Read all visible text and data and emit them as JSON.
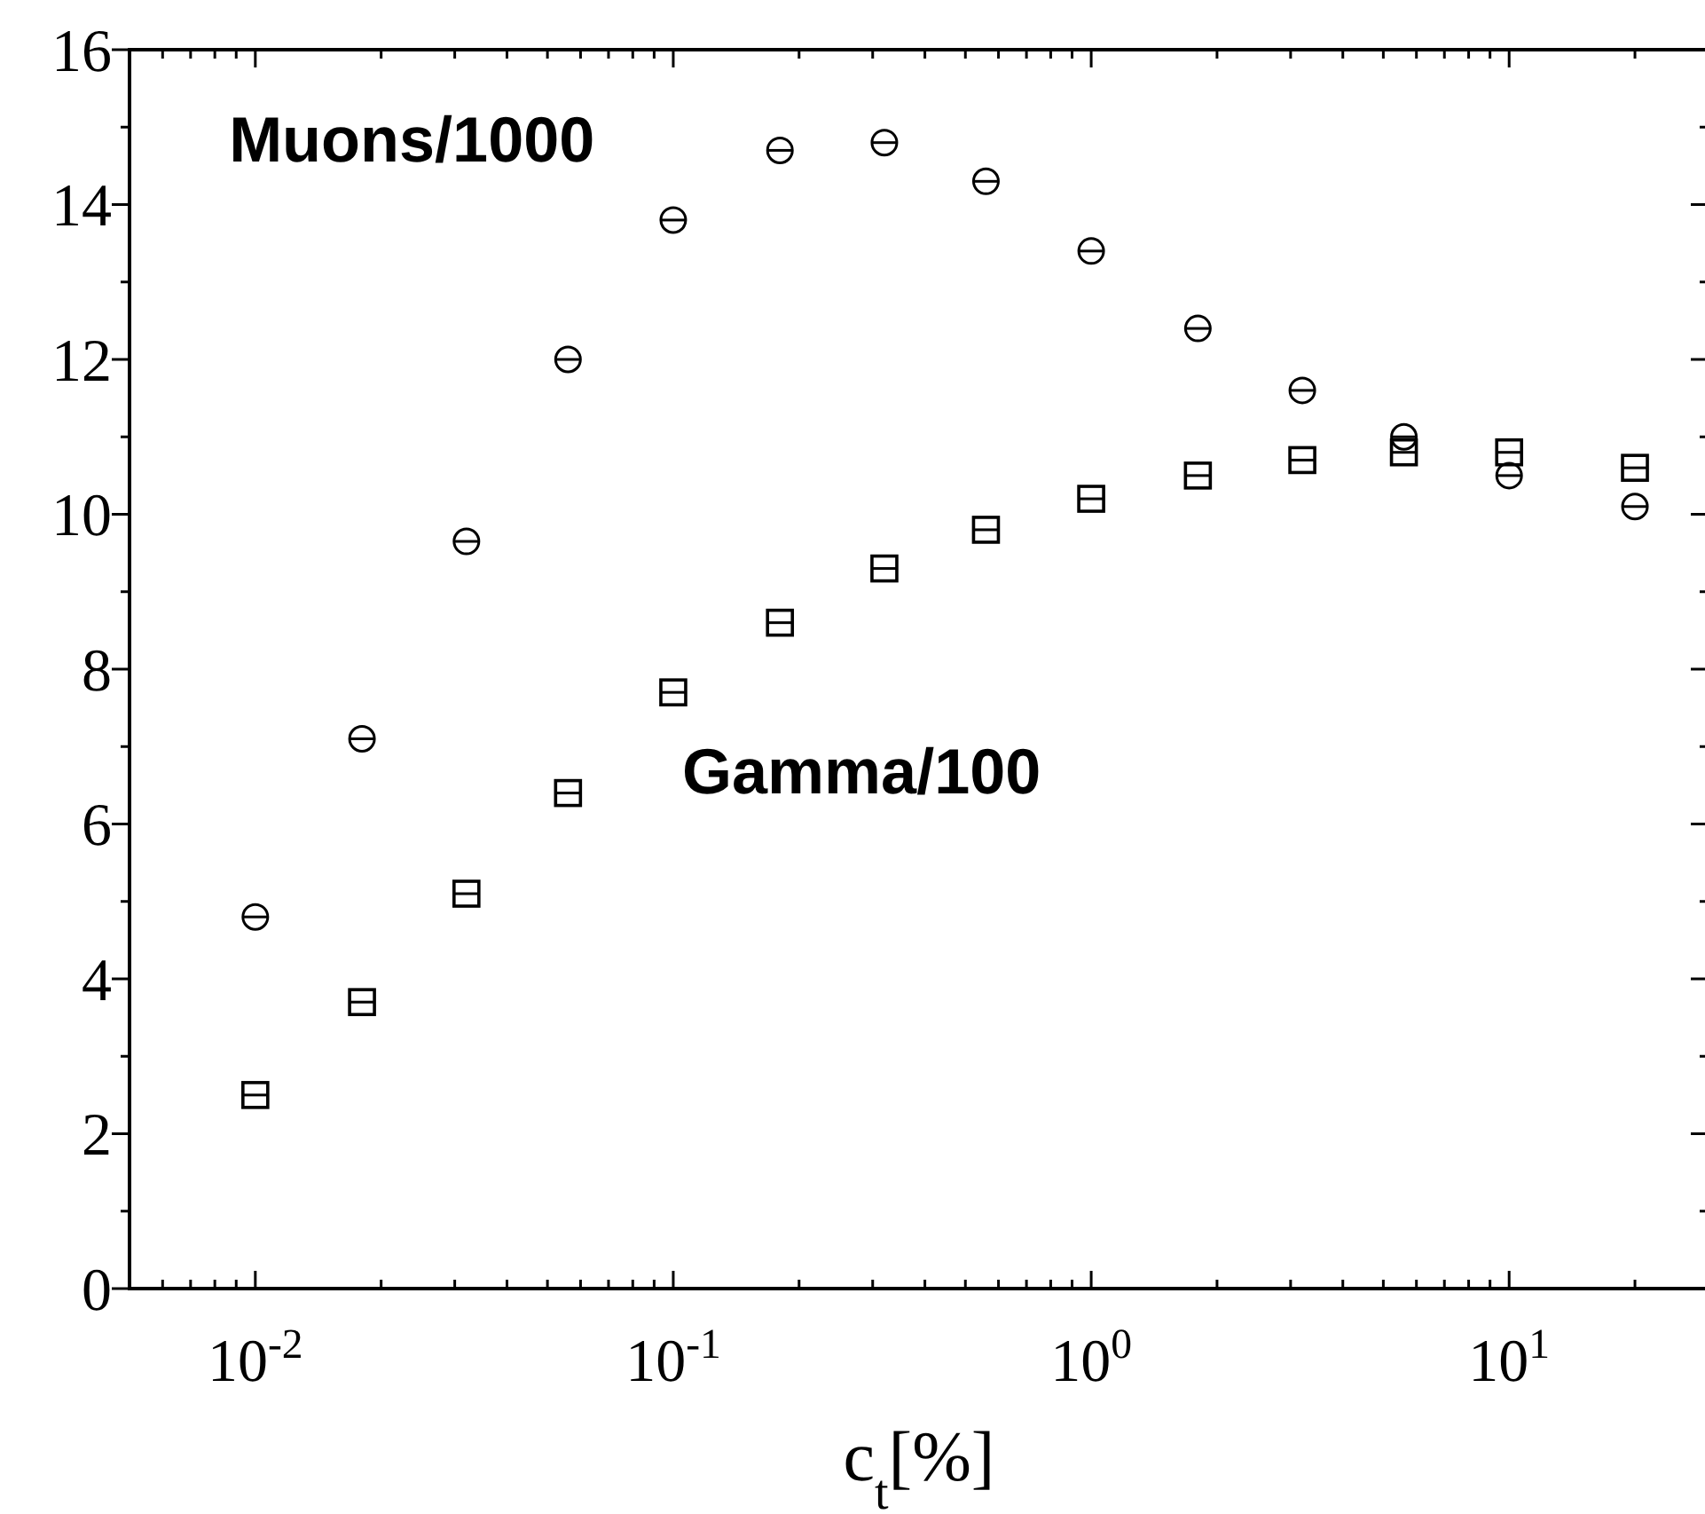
{
  "chart_data": {
    "type": "scatter",
    "xlabel": "c$_{t}$[%]",
    "log": "x",
    "x": [
      0.01,
      0.018,
      0.032,
      0.056,
      0.1,
      0.18,
      0.32,
      0.56,
      1,
      1.8,
      3.2,
      5.6,
      10,
      20
    ],
    "series": [
      {
        "name": "Muons/1000",
        "color": "#000000",
        "marker": "circle",
        "values": [
          4.8,
          7.1,
          9.65,
          12.0,
          13.8,
          14.7,
          14.8,
          14.3,
          13.4,
          12.4,
          11.6,
          11.0,
          10.5,
          10.1
        ]
      },
      {
        "name": "Gamma/100",
        "color": "#000000",
        "marker": "square",
        "values": [
          2.5,
          3.7,
          5.1,
          6.4,
          7.7,
          8.6,
          9.3,
          9.8,
          10.2,
          10.5,
          10.7,
          10.8,
          10.8,
          10.6
        ]
      }
    ],
    "xlim": [
      0.005,
      30
    ],
    "ylim": [
      0,
      16
    ],
    "xticks": [
      {
        "value": 0.01,
        "label": "10$^{-2}$"
      },
      {
        "value": 0.1,
        "label": "10$^{-1}$"
      },
      {
        "value": 1,
        "label": "10$^{0}$"
      },
      {
        "value": 10,
        "label": "10$^{1}$"
      },
      {
        "value": 0.006,
        "label": null
      },
      {
        "value": 0.007,
        "label": null
      },
      {
        "value": 0.008,
        "label": null
      },
      {
        "value": 0.009,
        "label": null
      },
      {
        "value": 0.02,
        "label": null
      },
      {
        "value": 0.03,
        "label": null
      },
      {
        "value": 0.04,
        "label": null
      },
      {
        "value": 0.05,
        "label": null
      },
      {
        "value": 0.06,
        "label": null
      },
      {
        "value": 0.07,
        "label": null
      },
      {
        "value": 0.08,
        "label": null
      },
      {
        "value": 0.09,
        "label": null
      },
      {
        "value": 0.2,
        "label": null
      },
      {
        "value": 0.3,
        "label": null
      },
      {
        "value": 0.4,
        "label": null
      },
      {
        "value": 0.5,
        "label": null
      },
      {
        "value": 0.6,
        "label": null
      },
      {
        "value": 0.7,
        "label": null
      },
      {
        "value": 0.8,
        "label": null
      },
      {
        "value": 0.9,
        "label": null
      },
      {
        "value": 2,
        "label": null
      },
      {
        "value": 3,
        "label": null
      },
      {
        "value": 4,
        "label": null
      },
      {
        "value": 5,
        "label": null
      },
      {
        "value": 6,
        "label": null
      },
      {
        "value": 7,
        "label": null
      },
      {
        "value": 8,
        "label": null
      },
      {
        "value": 9,
        "label": null
      },
      {
        "value": 20,
        "label": null
      }
    ],
    "yticks": [
      0,
      2,
      4,
      6,
      8,
      10,
      12,
      14,
      16,
      {
        "value": 1,
        "label": null
      },
      {
        "value": 3,
        "label": null
      },
      {
        "value": 5,
        "label": null
      },
      {
        "value": 7,
        "label": null
      },
      {
        "value": 9,
        "label": null
      },
      {
        "value": 11,
        "label": null
      },
      {
        "value": 13,
        "label": null
      },
      {
        "value": 15,
        "label": null
      }
    ],
    "grid": false,
    "legend": "top left"
  }
}
